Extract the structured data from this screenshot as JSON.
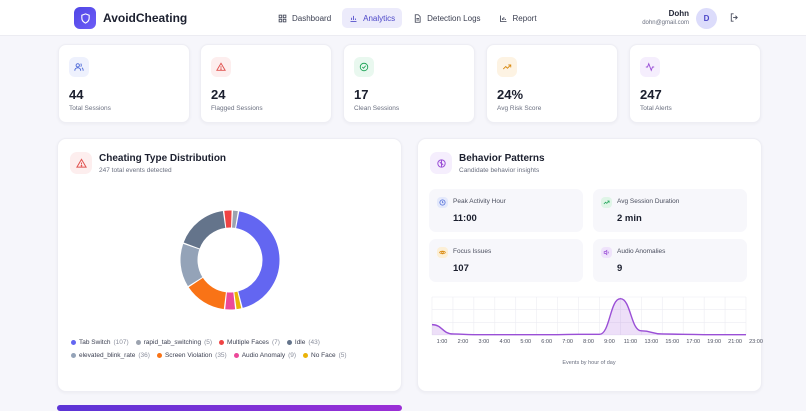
{
  "brand": {
    "name": "AvoidCheating"
  },
  "nav": [
    {
      "label": "Dashboard",
      "icon": "grid-icon",
      "active": false
    },
    {
      "label": "Analytics",
      "icon": "bar-chart-icon",
      "active": true
    },
    {
      "label": "Detection Logs",
      "icon": "file-icon",
      "active": false
    },
    {
      "label": "Report",
      "icon": "chart-icon",
      "active": false
    }
  ],
  "user": {
    "name": "Dohn",
    "email": "dohn@gmail.com",
    "initial": "D"
  },
  "stats": [
    {
      "value": "44",
      "label": "Total Sessions",
      "icon": "users-icon",
      "color": "#4f6bd8",
      "bg": "#eef1fd"
    },
    {
      "value": "24",
      "label": "Flagged Sessions",
      "icon": "warning-icon",
      "color": "#e0524f",
      "bg": "#fdeeee"
    },
    {
      "value": "17",
      "label": "Clean Sessions",
      "icon": "check-circle-icon",
      "color": "#22a55a",
      "bg": "#e9f8ef"
    },
    {
      "value": "24%",
      "label": "Avg Risk Score",
      "icon": "trend-up-icon",
      "color": "#d98a12",
      "bg": "#fdf3e3"
    },
    {
      "value": "247",
      "label": "Total Alerts",
      "icon": "activity-icon",
      "color": "#9a4fd6",
      "bg": "#f5eefd"
    }
  ],
  "distribution": {
    "title": "Cheating Type Distribution",
    "subtitle": "247 total events detected",
    "legend": [
      {
        "name": "Tab Switch",
        "count": "(107)",
        "color": "#6366f1"
      },
      {
        "name": "rapid_tab_switching",
        "count": "(5)",
        "color": "#9ca3af"
      },
      {
        "name": "Multiple Faces",
        "count": "(7)",
        "color": "#ef4444"
      },
      {
        "name": "Idle",
        "count": "(43)",
        "color": "#64748b"
      },
      {
        "name": "elevated_blink_rate",
        "count": "(36)",
        "color": "#94a3b8"
      },
      {
        "name": "Screen Violation",
        "count": "(35)",
        "color": "#f97316"
      },
      {
        "name": "Audio Anomaly",
        "count": "(9)",
        "color": "#ec4899"
      },
      {
        "name": "No Face",
        "count": "(5)",
        "color": "#eab308"
      }
    ]
  },
  "behavior": {
    "title": "Behavior Patterns",
    "subtitle": "Candidate behavior insights",
    "insights": [
      {
        "label": "Peak Activity Hour",
        "value": "11:00",
        "icon": "clock-icon",
        "color": "#4f6bd8",
        "bg": "#e4e9fb"
      },
      {
        "label": "Avg Session Duration",
        "value": "2 min",
        "icon": "trend-up-icon",
        "color": "#22a55a",
        "bg": "#dff5e7"
      },
      {
        "label": "Focus Issues",
        "value": "107",
        "icon": "eye-icon",
        "color": "#d98a12",
        "bg": "#fcefd6"
      },
      {
        "label": "Audio Anomalies",
        "value": "9",
        "icon": "speaker-icon",
        "color": "#9a4fd6",
        "bg": "#efe3fb"
      }
    ],
    "hourly_caption": "Events by hour of day"
  },
  "chart_data": {
    "type": "area",
    "x": [
      "1:00",
      "2:00",
      "3:00",
      "4:00",
      "5:00",
      "6:00",
      "7:00",
      "8:00",
      "9:00",
      "11:00",
      "13:00",
      "15:00",
      "17:00",
      "19:00",
      "21:00",
      "23:00"
    ],
    "values": [
      30,
      3,
      1,
      1,
      1,
      1,
      1,
      2,
      2,
      105,
      12,
      3,
      2,
      1,
      1,
      1
    ],
    "xlabel": "Events by hour of day",
    "color": "#9a4fd6"
  }
}
